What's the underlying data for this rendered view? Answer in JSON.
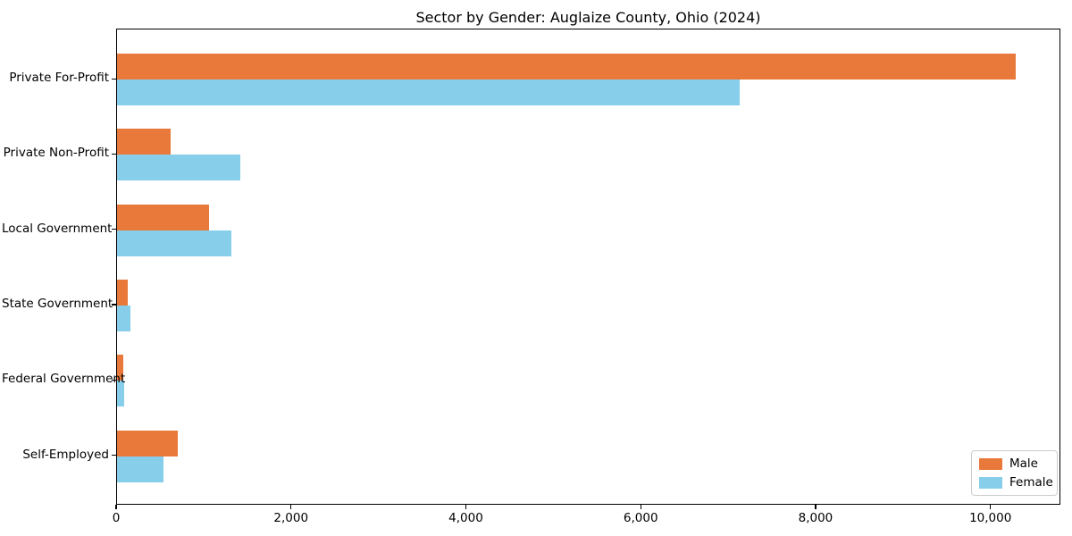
{
  "chart_data": {
    "type": "bar",
    "orientation": "horizontal",
    "title": "Sector by Gender: Auglaize County, Ohio (2024)",
    "categories": [
      "Private For-Profit",
      "Private Non-Profit",
      "Local Government",
      "State Government",
      "Federal Government",
      "Self-Employed"
    ],
    "series": [
      {
        "name": "Male",
        "color": "#E8793B",
        "values": [
          10280,
          610,
          1050,
          125,
          70,
          690
        ]
      },
      {
        "name": "Female",
        "color": "#87CEEB",
        "values": [
          7120,
          1410,
          1310,
          150,
          80,
          530
        ]
      }
    ],
    "xlabel": "",
    "ylabel": "",
    "xlim": [
      0,
      10800
    ],
    "xticks": [
      0,
      2000,
      4000,
      6000,
      8000,
      10000
    ],
    "xtick_labels": [
      "0",
      "2,000",
      "4,000",
      "6,000",
      "8,000",
      "10,000"
    ],
    "grid": false,
    "legend_position": "lower right",
    "background_color": "#ffffff",
    "spine_color": "#000000"
  }
}
